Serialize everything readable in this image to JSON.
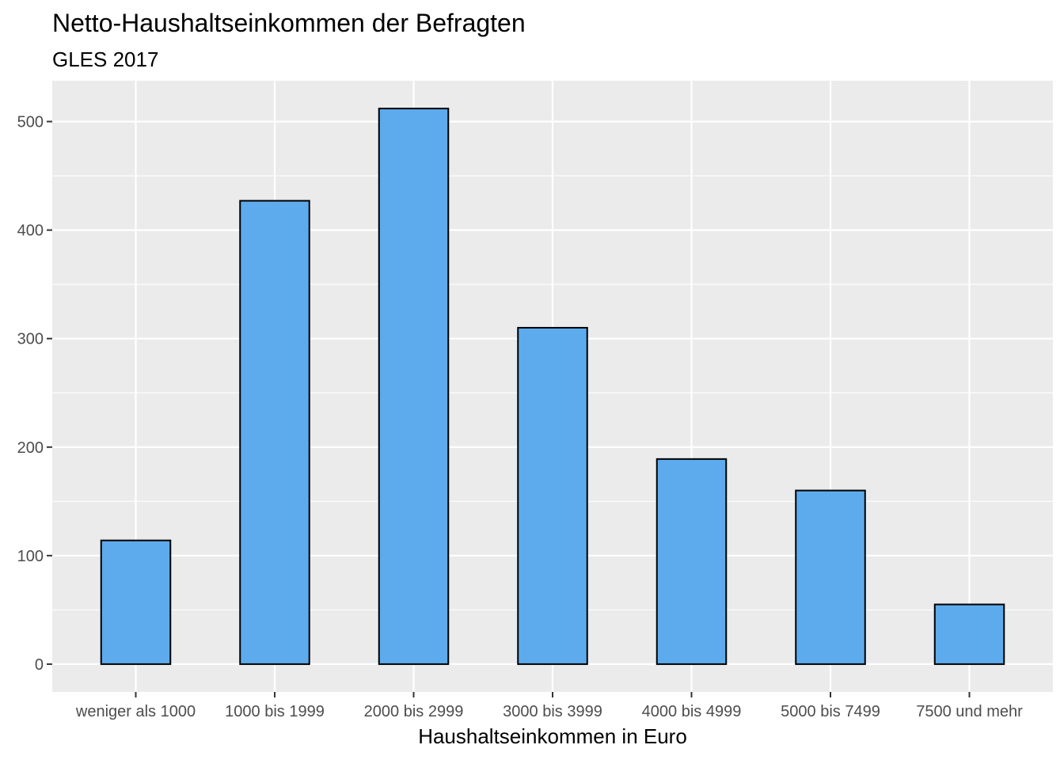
{
  "chart_data": {
    "type": "bar",
    "title": "Netto-Haushaltseinkommen der Befragten",
    "subtitle": "GLES 2017",
    "xlabel": "Haushaltseinkommen in Euro",
    "ylabel": "",
    "categories": [
      "weniger als 1000",
      "1000 bis 1999",
      "2000 bis 2999",
      "3000 bis 3999",
      "4000 bis 4999",
      "5000 bis 7499",
      "7500 und mehr"
    ],
    "values": [
      114,
      427,
      512,
      310,
      189,
      160,
      55
    ],
    "ylim": [
      -25.6,
      537.6
    ],
    "yticks": [
      "0",
      "100",
      "200",
      "300",
      "400",
      "500"
    ],
    "grid": true,
    "legend": "none",
    "colors": {
      "bar_fill": "#5dabed",
      "bar_outline": "#000000",
      "panel_background": "#ebebeb",
      "grid_line": "#ffffff"
    }
  }
}
